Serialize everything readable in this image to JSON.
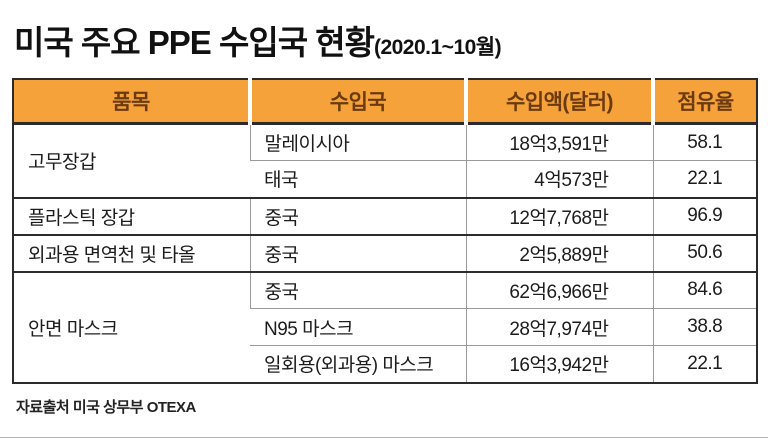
{
  "title": {
    "main": "미국 주요 PPE 수입국 현황",
    "period": "(2020.1~10월)"
  },
  "colors": {
    "header_bg": "#f6a23a",
    "header_text": "#6b3a0e",
    "border_strong": "#2b2b2b",
    "border_light": "#9a9a9a"
  },
  "chart_data": {
    "type": "table",
    "title": "미국 주요 PPE 수입국 현황(2020.1~10월)",
    "columns": [
      "품목",
      "수입국",
      "수입액(달러)",
      "점유율"
    ],
    "groups": [
      {
        "item": "고무장갑",
        "rows": [
          {
            "country": "말레이시아",
            "amount": "18억3,591만",
            "share": "58.1"
          },
          {
            "country": "태국",
            "amount": "4억573만",
            "share": "22.1"
          }
        ]
      },
      {
        "item": "플라스틱 장갑",
        "rows": [
          {
            "country": "중국",
            "amount": "12억7,768만",
            "share": "96.9"
          }
        ]
      },
      {
        "item": "외과용 면역천 및 타올",
        "rows": [
          {
            "country": "중국",
            "amount": "2억5,889만",
            "share": "50.6"
          }
        ]
      },
      {
        "item": "안면 마스크",
        "rows": [
          {
            "country": "중국",
            "amount": "62억6,966만",
            "share": "84.6"
          },
          {
            "country": "N95 마스크",
            "amount": "28억7,974만",
            "share": "38.8"
          },
          {
            "country": "일회용(외과용) 마스크",
            "amount": "16억3,942만",
            "share": "22.1"
          }
        ]
      }
    ]
  },
  "footer": {
    "source": "자료출처 미국 상무부 OTEXA"
  }
}
